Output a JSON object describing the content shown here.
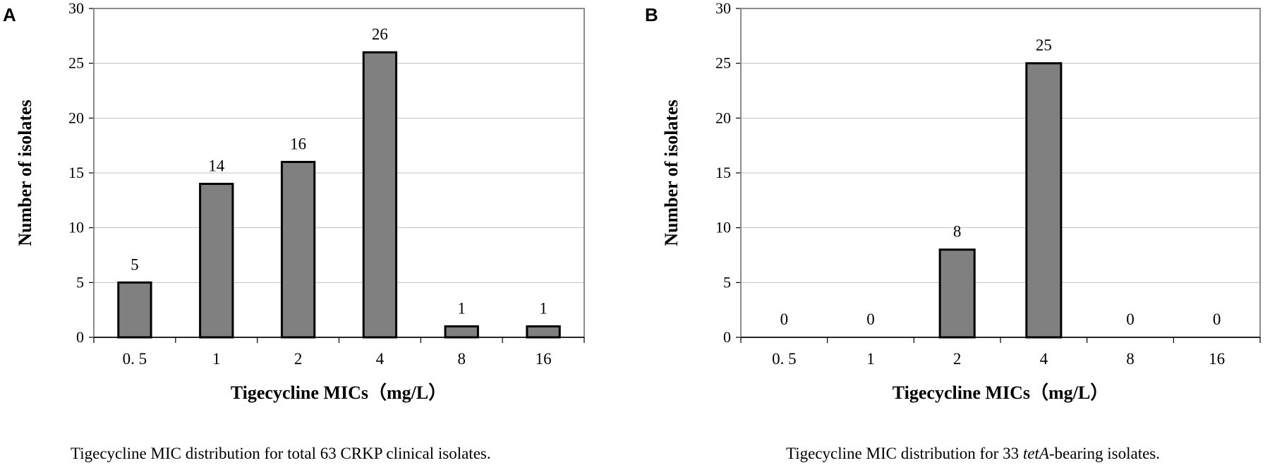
{
  "chart_data": [
    {
      "panel": "A",
      "type": "bar",
      "categories": [
        "0. 5",
        "1",
        "2",
        "4",
        "8",
        "16"
      ],
      "values": [
        5,
        14,
        16,
        26,
        1,
        1
      ],
      "data_labels": [
        "5",
        "14",
        "16",
        "26",
        "1",
        "1"
      ],
      "title": "",
      "xlabel": "Tigecycline MICs（mg/L）",
      "ylabel": "Number of isolates",
      "ylim": [
        0,
        30
      ],
      "yticks": [
        "0",
        "5",
        "10",
        "15",
        "20",
        "25",
        "30"
      ],
      "grid": true,
      "caption": "Tigecycline MIC distribution for total 63 CRKP clinical isolates.",
      "bar_color": "#808080"
    },
    {
      "panel": "B",
      "type": "bar",
      "categories": [
        "0. 5",
        "1",
        "2",
        "4",
        "8",
        "16"
      ],
      "values": [
        0,
        0,
        8,
        25,
        0,
        0
      ],
      "data_labels": [
        "0",
        "0",
        "8",
        "25",
        "0",
        "0"
      ],
      "title": "",
      "xlabel": "Tigecycline MICs（mg/L）",
      "ylabel": "Number of isolates",
      "ylim": [
        0,
        30
      ],
      "yticks": [
        "0",
        "5",
        "10",
        "15",
        "20",
        "25",
        "30"
      ],
      "grid": true,
      "caption_parts": [
        "Tigecycline MIC distribution for 33 ",
        "tetA",
        "-bearing isolates."
      ],
      "bar_color": "#808080"
    }
  ]
}
